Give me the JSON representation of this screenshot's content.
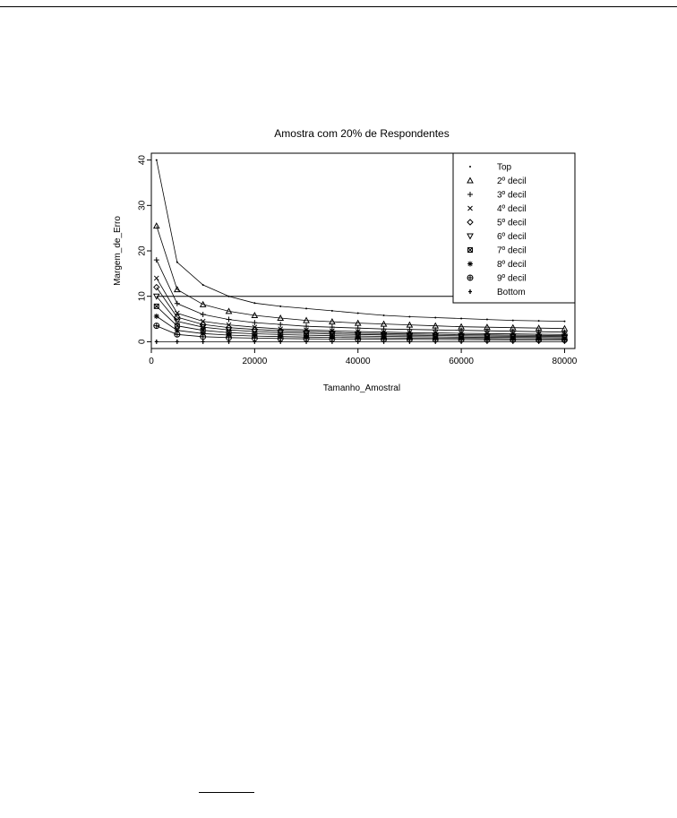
{
  "chart_data": {
    "type": "line",
    "title": "Amostra com 20% de Respondentes",
    "xlabel": "Tamanho_Amostral",
    "ylabel": "Margem_de_Erro",
    "xlim": [
      0,
      82000
    ],
    "ylim": [
      -1.5,
      41.5
    ],
    "xticks": [
      0,
      20000,
      40000,
      60000,
      80000
    ],
    "yticks": [
      0,
      10,
      20,
      30,
      40
    ],
    "grid": false,
    "legend_position": "top-right",
    "x": [
      1000,
      5000,
      10000,
      15000,
      20000,
      25000,
      30000,
      35000,
      40000,
      45000,
      50000,
      55000,
      60000,
      65000,
      70000,
      75000,
      80000
    ],
    "series": [
      {
        "name": "Top",
        "marker": "dot",
        "values": [
          40,
          17.5,
          12.5,
          10,
          8.5,
          7.8,
          7.3,
          6.8,
          6.3,
          5.8,
          5.5,
          5.3,
          5.1,
          4.9,
          4.7,
          4.6,
          4.5
        ]
      },
      {
        "name": "2º decil",
        "marker": "triangle-up",
        "values": [
          25.5,
          11.5,
          8.2,
          6.7,
          5.8,
          5.2,
          4.7,
          4.4,
          4.1,
          3.9,
          3.7,
          3.5,
          3.3,
          3.2,
          3.1,
          3.0,
          2.9
        ]
      },
      {
        "name": "3º decil",
        "marker": "plus",
        "values": [
          18,
          8.4,
          6,
          4.9,
          4.2,
          3.8,
          3.4,
          3.2,
          3.0,
          2.8,
          2.7,
          2.6,
          2.5,
          2.4,
          2.3,
          2.2,
          2.1
        ]
      },
      {
        "name": "4º decil",
        "marker": "cross",
        "values": [
          14,
          6.3,
          4.5,
          3.7,
          3.2,
          2.8,
          2.6,
          2.4,
          2.25,
          2.1,
          2.0,
          1.95,
          1.85,
          1.8,
          1.72,
          1.66,
          1.6
        ]
      },
      {
        "name": "5º decil",
        "marker": "diamond",
        "values": [
          12,
          5.4,
          3.8,
          3.1,
          2.7,
          2.4,
          2.2,
          2.05,
          1.9,
          1.8,
          1.7,
          1.63,
          1.56,
          1.5,
          1.44,
          1.4,
          1.35
        ]
      },
      {
        "name": "6º decil",
        "marker": "triangle-down",
        "values": [
          10,
          4.5,
          3.2,
          2.6,
          2.25,
          2.0,
          1.85,
          1.7,
          1.6,
          1.5,
          1.42,
          1.36,
          1.3,
          1.25,
          1.2,
          1.17,
          1.13
        ]
      },
      {
        "name": "7º decil",
        "marker": "boxed-cross",
        "values": [
          7.8,
          3.5,
          2.5,
          2.0,
          1.75,
          1.57,
          1.43,
          1.33,
          1.24,
          1.17,
          1.1,
          1.06,
          1.01,
          0.97,
          0.94,
          0.9,
          0.87
        ]
      },
      {
        "name": "8º decil",
        "marker": "asterisk",
        "values": [
          5.6,
          2.5,
          1.8,
          1.45,
          1.25,
          1.12,
          1.02,
          0.95,
          0.89,
          0.84,
          0.79,
          0.76,
          0.72,
          0.7,
          0.67,
          0.65,
          0.63
        ]
      },
      {
        "name": "9º decil",
        "marker": "circle-plus",
        "values": [
          3.5,
          1.6,
          1.1,
          0.9,
          0.78,
          0.7,
          0.64,
          0.59,
          0.55,
          0.52,
          0.5,
          0.47,
          0.45,
          0.43,
          0.42,
          0.4,
          0.39
        ]
      },
      {
        "name": "Bottom",
        "marker": "diamond-plus",
        "values": [
          0,
          0,
          0,
          0,
          0,
          0,
          0,
          0,
          0,
          0,
          0,
          0,
          0,
          0,
          0,
          0,
          0
        ]
      }
    ],
    "reference_line": {
      "y": 10,
      "x_range": [
        1000,
        80000
      ]
    }
  }
}
